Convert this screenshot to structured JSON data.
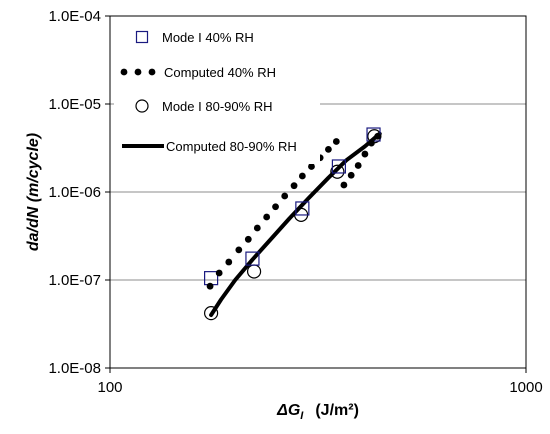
{
  "chart_data": {
    "type": "scatter",
    "xscale": "log",
    "yscale": "log",
    "xlim": [
      100,
      1000
    ],
    "ylim": [
      1e-08,
      0.0001
    ],
    "grid": "horizontal",
    "legend_position": "top-left",
    "x_tick_labels": [
      "100",
      "1000"
    ],
    "y_tick_labels": [
      "1.0E-08",
      "1.0E-07",
      "1.0E-06",
      "1.0E-05",
      "1.0E-04"
    ],
    "ylabel": "da/dN  (m/cycle)",
    "xlabel": "ΔG",
    "xlabel_sub": "I",
    "xlabel_unit": "(J/m²)",
    "series": [
      {
        "name": "Mode I 40% RH",
        "marker": "square",
        "x": [
          175,
          220,
          290,
          355,
          430
        ],
        "y": [
          1.05e-07,
          1.75e-07,
          6.5e-07,
          1.95e-06,
          4.5e-06
        ]
      },
      {
        "name": "Computed 40% RH",
        "marker": "dot",
        "x": [
          174,
          183,
          193,
          204,
          215,
          226,
          238,
          250,
          263,
          277,
          290,
          305,
          320,
          335,
          350,
          365,
          380,
          395,
          410,
          425,
          440
        ],
        "y": [
          8.5e-08,
          1.2e-07,
          1.6e-07,
          2.2e-07,
          2.9e-07,
          3.9e-07,
          5.2e-07,
          6.8e-07,
          9e-07,
          1.18e-06,
          1.52e-06,
          1.95e-06,
          2.45e-06,
          3.05e-06,
          3.75e-06,
          1.2e-06,
          1.55e-06,
          2e-06,
          2.7e-06,
          3.6e-06,
          4.3e-06
        ]
      },
      {
        "name": "Mode I 80-90% RH",
        "marker": "circle",
        "x": [
          175,
          222,
          288,
          352,
          432
        ],
        "y": [
          4.2e-08,
          1.25e-07,
          5.5e-07,
          1.7e-06,
          4.3e-06
        ]
      },
      {
        "name": "Computed 80-90% RH",
        "marker": "line",
        "x": [
          175,
          185,
          200,
          220,
          245,
          270,
          300,
          335,
          370,
          410,
          445
        ],
        "y": [
          4e-08,
          6e-08,
          1e-07,
          1.7e-07,
          3e-07,
          5e-07,
          8.5e-07,
          1.45e-06,
          2.3e-06,
          3.3e-06,
          4.6e-06
        ]
      }
    ]
  }
}
